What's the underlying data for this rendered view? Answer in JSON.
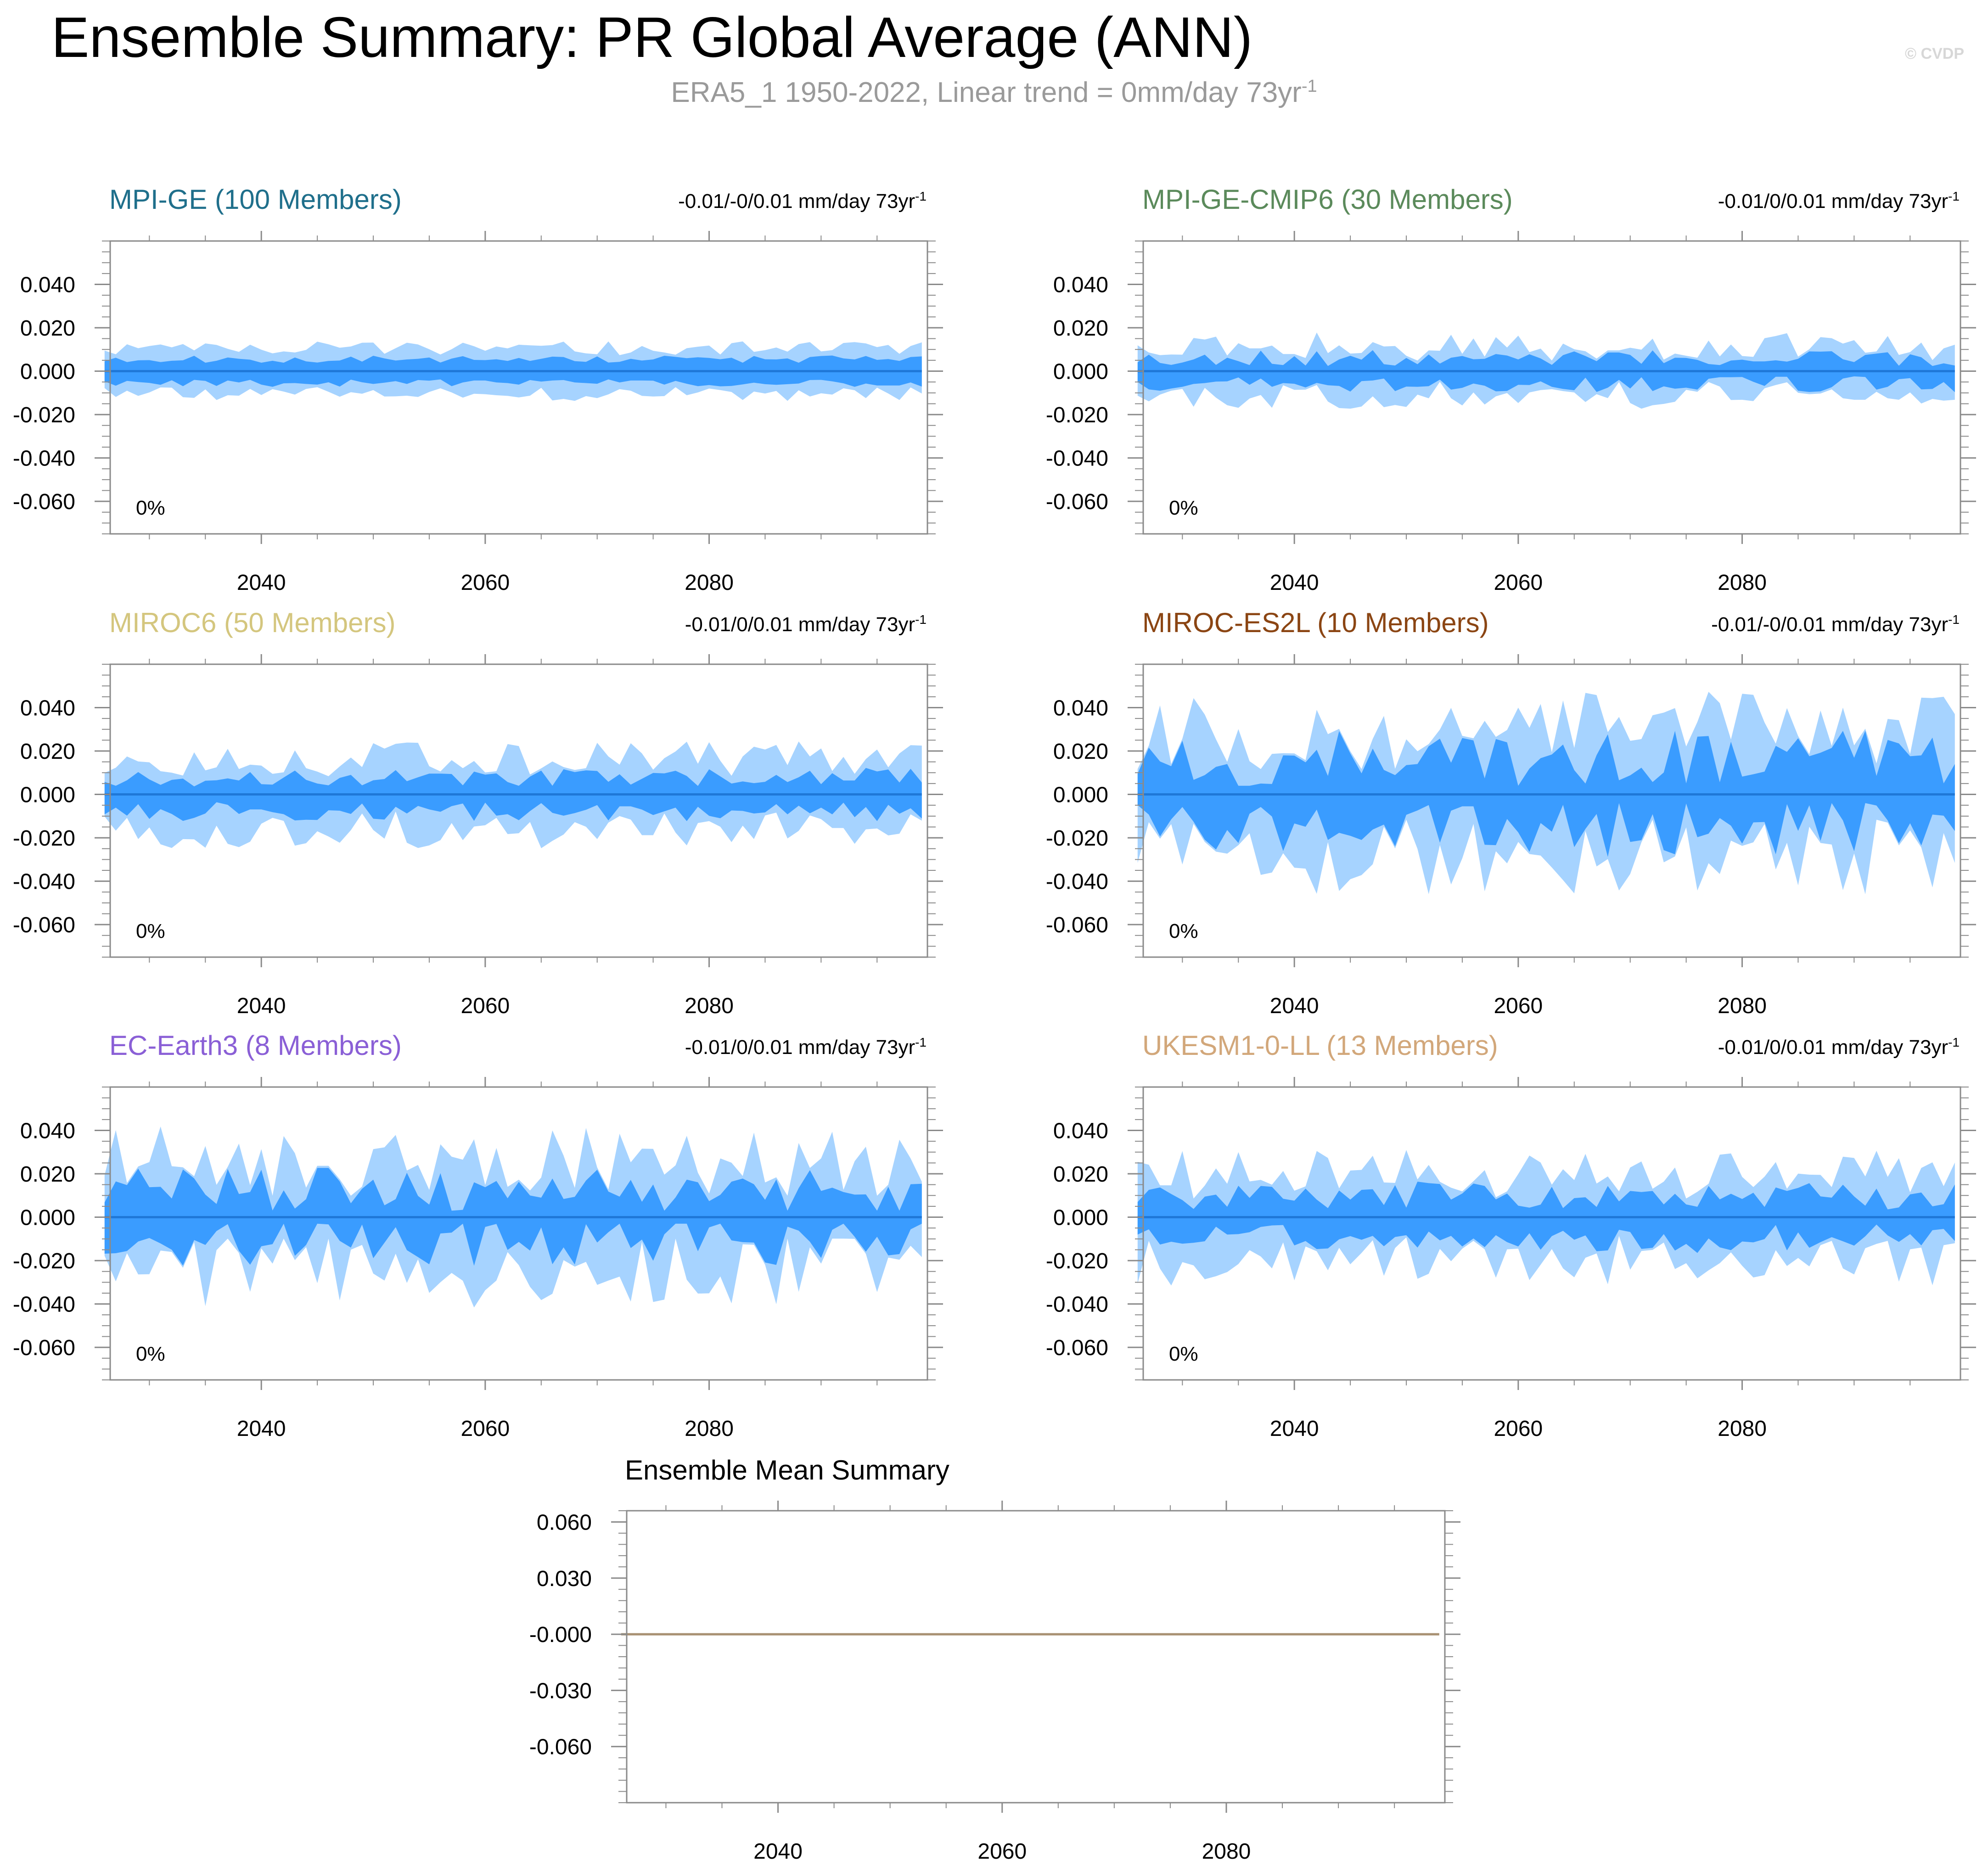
{
  "figure": {
    "title": "Ensemble Summary: PR Global Average (ANN)",
    "subtitle_main": "ERA5_1 1950-2022, Linear trend = 0mm/day 73yr",
    "subtitle_sup": "-1",
    "copyright": "© CVDP"
  },
  "colors": {
    "outer_band": "#a6d3ff",
    "inner_band": "#3a9cff",
    "mean_line": "#1f78d8",
    "frame": "#8a8a8a",
    "ensemble_mean_line": "#a89072"
  },
  "chart_data": [
    {
      "type": "area",
      "id": "mpi-ge",
      "title": "MPI-GE (100 Members)",
      "title_color": "#1f6f8b",
      "trend_main": "-0.01/-0/0.01 mm/day 73yr",
      "trend_sup": "-1",
      "percent_label": "0%",
      "x_start": 2026,
      "x_end": 2099,
      "xlim": [
        2026.5,
        2099.5
      ],
      "x_ticks": [
        2040,
        2060,
        2080
      ],
      "x_tick_labels": [
        "2040",
        "2060",
        "2080"
      ],
      "ylim": [
        -0.075,
        0.06
      ],
      "y_ticks": [
        0.04,
        0.02,
        0.0,
        -0.02,
        -0.04,
        -0.06
      ],
      "y_tick_labels": [
        "0.040",
        "0.020",
        "0.000",
        "-0.020",
        "-0.040",
        "-0.060"
      ],
      "amplitude": {
        "outer": 0.0105,
        "inner": 0.0055,
        "variability": 0.14
      },
      "seed": 11
    },
    {
      "type": "area",
      "id": "mpi-ge-cmip6",
      "title": "MPI-GE-CMIP6 (30 Members)",
      "title_color": "#5b8a5b",
      "trend_main": "-0.01/0/0.01 mm/day 73yr",
      "trend_sup": "-1",
      "percent_label": "0%",
      "x_start": 2026,
      "x_end": 2099,
      "xlim": [
        2026.5,
        2099.5
      ],
      "x_ticks": [
        2040,
        2060,
        2080
      ],
      "x_tick_labels": [
        "2040",
        "2060",
        "2080"
      ],
      "ylim": [
        -0.075,
        0.06
      ],
      "y_ticks": [
        0.04,
        0.02,
        0.0,
        -0.02,
        -0.04,
        -0.06
      ],
      "y_tick_labels": [
        "0.040",
        "0.020",
        "0.000",
        "-0.020",
        "-0.040",
        "-0.060"
      ],
      "amplitude": {
        "outer": 0.011,
        "inner": 0.006,
        "variability": 0.28
      },
      "seed": 23
    },
    {
      "type": "area",
      "id": "miroc6",
      "title": "MIROC6 (50 Members)",
      "title_color": "#d4c67e",
      "trend_main": "-0.01/0/0.01 mm/day 73yr",
      "trend_sup": "-1",
      "percent_label": "0%",
      "x_start": 2026,
      "x_end": 2099,
      "xlim": [
        2026.5,
        2099.5
      ],
      "x_ticks": [
        2040,
        2060,
        2080
      ],
      "x_tick_labels": [
        "2040",
        "2060",
        "2080"
      ],
      "ylim": [
        -0.075,
        0.06
      ],
      "y_ticks": [
        0.04,
        0.02,
        0.0,
        -0.02,
        -0.04,
        -0.06
      ],
      "y_tick_labels": [
        "0.040",
        "0.020",
        "0.000",
        "-0.020",
        "-0.040",
        "-0.060"
      ],
      "amplitude": {
        "outer": 0.016,
        "inner": 0.008,
        "variability": 0.25
      },
      "seed": 37
    },
    {
      "type": "area",
      "id": "miroc-es2l",
      "title": "MIROC-ES2L (10 Members)",
      "title_color": "#8b4513",
      "trend_main": "-0.01/-0/0.01 mm/day 73yr",
      "trend_sup": "-1",
      "percent_label": "0%",
      "x_start": 2026,
      "x_end": 2099,
      "xlim": [
        2026.5,
        2099.5
      ],
      "x_ticks": [
        2040,
        2060,
        2080
      ],
      "x_tick_labels": [
        "2040",
        "2060",
        "2080"
      ],
      "ylim": [
        -0.075,
        0.06
      ],
      "y_ticks": [
        0.04,
        0.02,
        0.0,
        -0.02,
        -0.04,
        -0.06
      ],
      "y_tick_labels": [
        "0.040",
        "0.020",
        "0.000",
        "-0.020",
        "-0.040",
        "-0.060"
      ],
      "amplitude": {
        "outer": 0.026,
        "inner": 0.016,
        "variability": 0.38
      },
      "seed": 53
    },
    {
      "type": "area",
      "id": "ec-earth3",
      "title": "EC-Earth3 (8 Members)",
      "title_color": "#8a5fd6",
      "trend_main": "-0.01/0/0.01 mm/day 73yr",
      "trend_sup": "-1",
      "percent_label": "0%",
      "x_start": 2026,
      "x_end": 2099,
      "xlim": [
        2026.5,
        2099.5
      ],
      "x_ticks": [
        2040,
        2060,
        2080
      ],
      "x_tick_labels": [
        "2040",
        "2060",
        "2080"
      ],
      "ylim": [
        -0.075,
        0.06
      ],
      "y_ticks": [
        0.04,
        0.02,
        0.0,
        -0.02,
        -0.04,
        -0.06
      ],
      "y_tick_labels": [
        "0.040",
        "0.020",
        "0.000",
        "-0.020",
        "-0.040",
        "-0.060"
      ],
      "amplitude": {
        "outer": 0.022,
        "inner": 0.012,
        "variability": 0.42
      },
      "seed": 71
    },
    {
      "type": "area",
      "id": "ukesm1-0-ll",
      "title": "UKESM1-0-LL (13 Members)",
      "title_color": "#d2a77a",
      "trend_main": "-0.01/0/0.01 mm/day 73yr",
      "trend_sup": "-1",
      "percent_label": "0%",
      "x_start": 2026,
      "x_end": 2099,
      "xlim": [
        2026.5,
        2099.5
      ],
      "x_ticks": [
        2040,
        2060,
        2080
      ],
      "x_tick_labels": [
        "2040",
        "2060",
        "2080"
      ],
      "ylim": [
        -0.075,
        0.06
      ],
      "y_ticks": [
        0.04,
        0.02,
        0.0,
        -0.02,
        -0.04,
        -0.06
      ],
      "y_tick_labels": [
        "0.040",
        "0.020",
        "0.000",
        "-0.020",
        "-0.040",
        "-0.060"
      ],
      "amplitude": {
        "outer": 0.019,
        "inner": 0.01,
        "variability": 0.3
      },
      "seed": 89
    },
    {
      "type": "line",
      "id": "ensemble-mean",
      "title": "Ensemble Mean Summary",
      "title_color": "#000000",
      "x": [
        2026,
        2099
      ],
      "values": [
        0.0,
        0.0
      ],
      "xlim": [
        2026.5,
        2099.5
      ],
      "x_ticks": [
        2040,
        2060,
        2080
      ],
      "x_tick_labels": [
        "2040",
        "2060",
        "2080"
      ],
      "ylim": [
        -0.09,
        0.066
      ],
      "y_ticks": [
        0.06,
        0.03,
        0.0,
        -0.03,
        -0.06
      ],
      "y_tick_labels": [
        "0.060",
        "0.030",
        "-0.000",
        "-0.030",
        "-0.060"
      ]
    }
  ]
}
